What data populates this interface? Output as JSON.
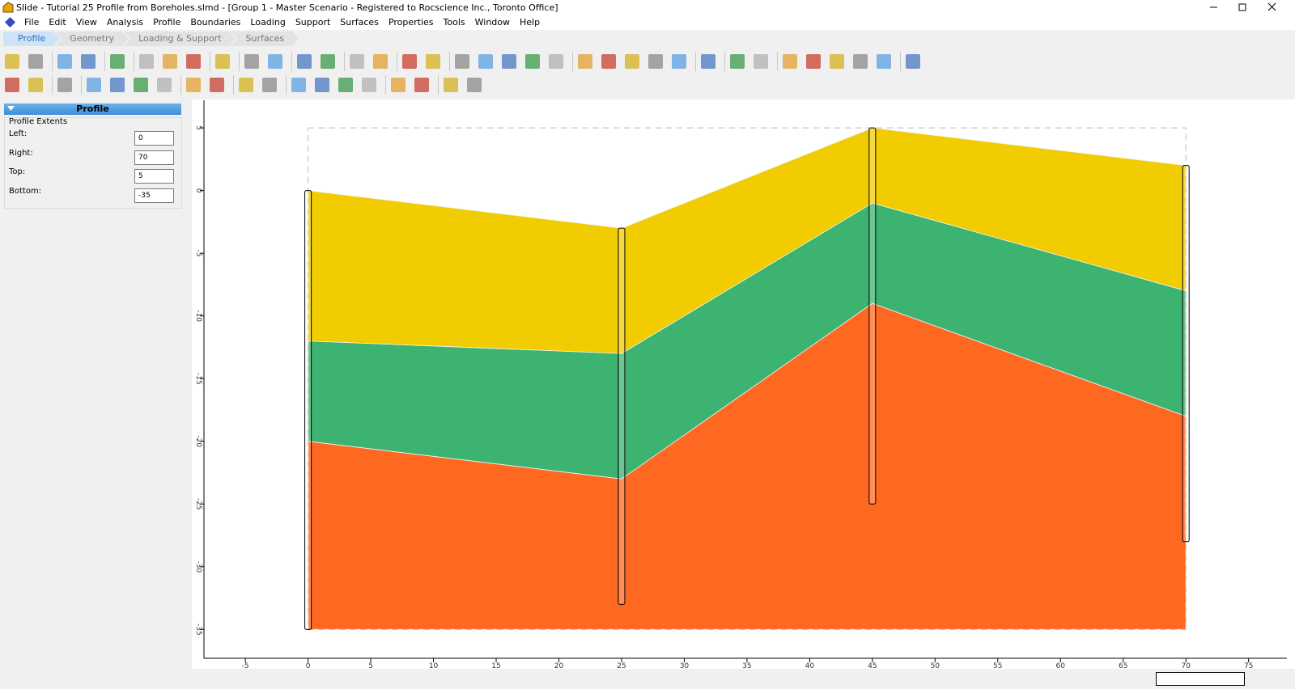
{
  "window": {
    "title": "Slide - Tutorial 25 Profile from Boreholes.slmd - [Group 1 - Master Scenario - Registered to Rocscience Inc., Toronto Office]"
  },
  "menu": [
    "File",
    "Edit",
    "View",
    "Analysis",
    "Profile",
    "Boundaries",
    "Loading",
    "Support",
    "Surfaces",
    "Properties",
    "Tools",
    "Window",
    "Help"
  ],
  "workflow_tabs": [
    "Profile",
    "Geometry",
    "Loading & Support",
    "Surfaces"
  ],
  "panel": {
    "header": "Profile",
    "group": "Profile Extents",
    "fields": [
      {
        "label": "Left:",
        "value": 0
      },
      {
        "label": "Right:",
        "value": 70
      },
      {
        "label": "Top:",
        "value": 5
      },
      {
        "label": "Bottom:",
        "value": -35
      }
    ]
  },
  "profile_view": {
    "xlim": [
      -8.3,
      78.7
    ],
    "ylim": [
      -37.3,
      7.2
    ],
    "xticks": [
      -5,
      0,
      5,
      10,
      15,
      20,
      25,
      30,
      35,
      40,
      45,
      50,
      55,
      60,
      65,
      70,
      75
    ],
    "yticks": [
      5,
      0,
      -5,
      -10,
      -15,
      -20,
      -25,
      -30,
      -35
    ],
    "borehole_x": [
      0,
      25,
      45,
      70
    ],
    "layers": [
      {
        "color": "#f0cc00",
        "top": [
          0,
          -3,
          5,
          2
        ]
      },
      {
        "color": "#3cb371",
        "top": [
          -12,
          -13,
          -1,
          -8
        ]
      },
      {
        "color": "#ff6820",
        "top": [
          -20,
          -23,
          -9,
          -18
        ]
      }
    ],
    "layer_bottom": -35,
    "boreholes": [
      {
        "x": 0,
        "top": 0,
        "bottom": -35
      },
      {
        "x": 25,
        "top": -3,
        "bottom": -33
      },
      {
        "x": 45,
        "top": 5,
        "bottom": -25
      },
      {
        "x": 70,
        "top": 2,
        "bottom": -28
      }
    ]
  }
}
